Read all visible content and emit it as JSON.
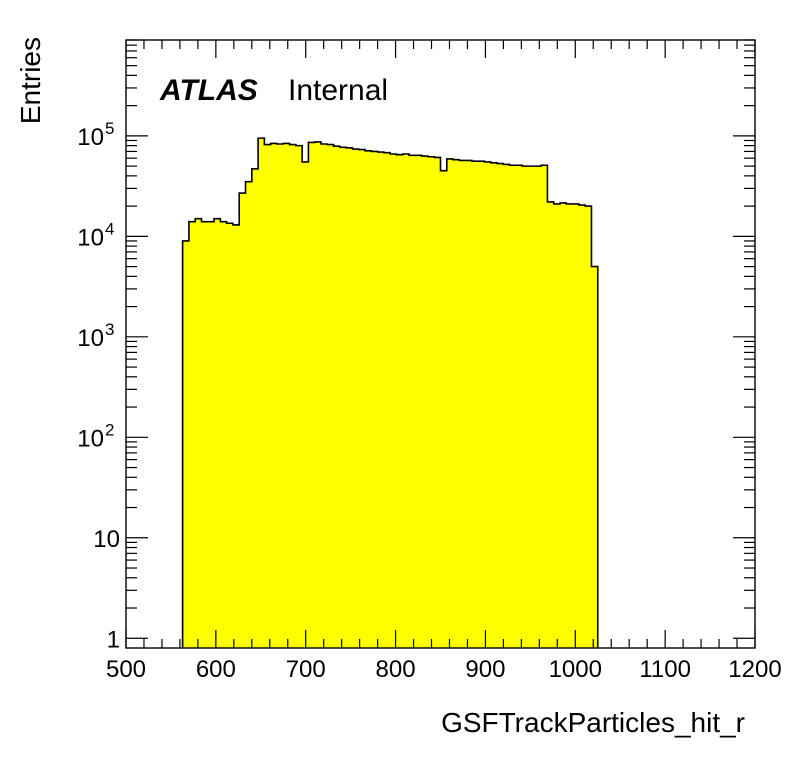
{
  "chart_data": {
    "type": "bar",
    "style": "histogram",
    "title": "",
    "xlabel": "GSFTrackParticles_hit_r",
    "ylabel": "Entries",
    "x_range": [
      500,
      1200
    ],
    "y_range": [
      0.8,
      900000
    ],
    "y_scale": "log",
    "x_tick_labels": [
      "500",
      "600",
      "700",
      "800",
      "900",
      "1000",
      "1100",
      "1200"
    ],
    "y_tick_labels": [
      {
        "value": 1,
        "base": "1",
        "exp": ""
      },
      {
        "value": 10,
        "base": "10",
        "exp": ""
      },
      {
        "value": 100,
        "base": "10",
        "exp": "2"
      },
      {
        "value": 1000,
        "base": "10",
        "exp": "3"
      },
      {
        "value": 10000,
        "base": "10",
        "exp": "4"
      },
      {
        "value": 100000,
        "base": "10",
        "exp": "5"
      }
    ],
    "bin_width": 7,
    "bin_edges_start": 563,
    "values": [
      9000,
      14000,
      15000,
      14000,
      14000,
      15000,
      14000,
      13500,
      13000,
      27000,
      35000,
      47000,
      95000,
      82000,
      84000,
      83000,
      84000,
      82000,
      80000,
      55000,
      86000,
      87000,
      83000,
      82000,
      79000,
      77000,
      76000,
      74000,
      73000,
      71000,
      70000,
      69000,
      68000,
      66000,
      65000,
      66000,
      64000,
      64000,
      63000,
      62000,
      61000,
      45000,
      59000,
      58000,
      57000,
      57000,
      56000,
      56000,
      55000,
      54000,
      53000,
      52000,
      51000,
      51000,
      50000,
      50000,
      50000,
      51000,
      22000,
      21000,
      21500,
      21000,
      21000,
      20500,
      20000,
      5000
    ],
    "fill_color": "#ffff00",
    "line_color": "#000000",
    "grid": false,
    "legend": "none",
    "annotation": {
      "experiment": "ATLAS",
      "status": "Internal"
    }
  }
}
